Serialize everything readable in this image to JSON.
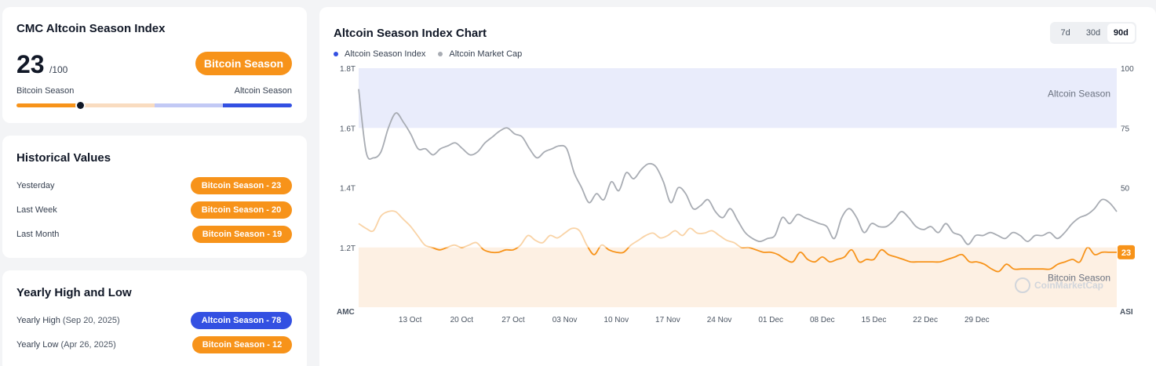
{
  "index_card": {
    "title": "CMC Altcoin Season Index",
    "value": "23",
    "max": "/100",
    "season_label": "Bitcoin Season",
    "scale_left": "Bitcoin Season",
    "scale_right": "Altcoin Season",
    "gauge_value": 23,
    "gauge_colors": [
      "#f7931a",
      "#f9dcc0",
      "#c2c9f5",
      "#3350e2"
    ]
  },
  "historical": {
    "title": "Historical Values",
    "rows": [
      {
        "label": "Yesterday",
        "value": "Bitcoin Season - 23"
      },
      {
        "label": "Last Week",
        "value": "Bitcoin Season - 20"
      },
      {
        "label": "Last Month",
        "value": "Bitcoin Season - 19"
      }
    ]
  },
  "yearly": {
    "title": "Yearly High and Low",
    "high_label": "Yearly High",
    "high_date": "(Sep 20, 2025)",
    "high_value": "Altcoin Season - 78",
    "low_label": "Yearly Low",
    "low_date": "(Apr 26, 2025)",
    "low_value": "Bitcoin Season - 12"
  },
  "chart_header": {
    "title": "Altcoin Season Index Chart",
    "ranges": [
      "7d",
      "30d",
      "90d"
    ],
    "active_range": "90d"
  },
  "colors": {
    "bitcoin_orange": "#f7931a",
    "altcoin_blue": "#3350e2",
    "market_cap_gray": "#a8acb3",
    "altcoin_zone": "#e9ecfb",
    "bitcoin_zone": "#fdf0e3"
  },
  "chart_data": {
    "type": "line",
    "legend": [
      "Altcoin Season Index",
      "Altcoin Market Cap"
    ],
    "left_axis_ticks": [
      "1.8T",
      "1.6T",
      "1.4T",
      "1.2T"
    ],
    "left_axis_ylim": [
      1.0,
      1.8
    ],
    "left_axis_label": "AMC",
    "right_axis_ticks": [
      "100",
      "75",
      "50"
    ],
    "right_axis_ylim": [
      0,
      100
    ],
    "right_axis_label": "ASI",
    "x_ticks": [
      "13 Oct",
      "20 Oct",
      "27 Oct",
      "03 Nov",
      "10 Nov",
      "17 Nov",
      "24 Nov",
      "01 Dec",
      "08 Dec",
      "15 Dec",
      "22 Dec",
      "29 Dec"
    ],
    "zones": [
      {
        "label": "Altcoin Season",
        "from": 75,
        "to": 100
      },
      {
        "label": "Bitcoin Season",
        "from": 0,
        "to": 25
      }
    ],
    "current_value_label": "23",
    "watermark": "CoinMarketCap",
    "series": [
      {
        "name": "Altcoin Season Index",
        "axis": "right",
        "x_start": "Oct 6",
        "step_days": 1,
        "values": [
          35,
          33,
          32,
          38,
          40,
          40,
          37,
          34,
          30,
          26,
          25,
          24,
          25,
          26,
          25,
          26,
          27,
          24,
          23,
          23,
          24,
          24,
          26,
          30,
          28,
          27,
          30,
          29,
          31,
          33,
          32,
          26,
          22,
          26,
          24,
          23,
          23,
          26,
          28,
          30,
          31,
          29,
          30,
          32,
          30,
          33,
          31,
          31,
          32,
          30,
          28,
          27,
          25,
          25,
          24,
          23,
          23,
          22,
          20,
          19,
          23,
          20,
          19,
          21,
          19,
          20,
          21,
          24,
          19,
          20,
          20,
          24,
          22,
          21,
          20,
          19,
          19,
          19,
          19,
          19,
          20,
          21,
          22,
          19,
          19,
          18,
          16,
          15,
          18,
          16,
          16,
          16,
          16,
          16,
          16,
          18,
          19,
          20,
          19,
          25,
          22,
          23,
          23,
          23
        ]
      },
      {
        "name": "Altcoin Market Cap",
        "axis": "left",
        "x_start": "Oct 6",
        "step_days": 1,
        "values": [
          1.73,
          1.52,
          1.5,
          1.52,
          1.6,
          1.65,
          1.62,
          1.58,
          1.53,
          1.53,
          1.51,
          1.53,
          1.54,
          1.55,
          1.53,
          1.51,
          1.52,
          1.55,
          1.57,
          1.59,
          1.6,
          1.58,
          1.57,
          1.53,
          1.5,
          1.52,
          1.53,
          1.54,
          1.53,
          1.45,
          1.4,
          1.35,
          1.38,
          1.36,
          1.42,
          1.39,
          1.45,
          1.43,
          1.46,
          1.48,
          1.47,
          1.42,
          1.35,
          1.4,
          1.38,
          1.33,
          1.34,
          1.36,
          1.32,
          1.3,
          1.33,
          1.29,
          1.25,
          1.23,
          1.22,
          1.23,
          1.24,
          1.3,
          1.28,
          1.31,
          1.3,
          1.29,
          1.28,
          1.27,
          1.23,
          1.3,
          1.33,
          1.3,
          1.25,
          1.28,
          1.27,
          1.27,
          1.29,
          1.32,
          1.3,
          1.27,
          1.26,
          1.27,
          1.25,
          1.28,
          1.25,
          1.24,
          1.21,
          1.24,
          1.24,
          1.25,
          1.24,
          1.23,
          1.25,
          1.24,
          1.22,
          1.24,
          1.24,
          1.25,
          1.23,
          1.25,
          1.28,
          1.3,
          1.31,
          1.33,
          1.36,
          1.35,
          1.32
        ]
      }
    ]
  }
}
